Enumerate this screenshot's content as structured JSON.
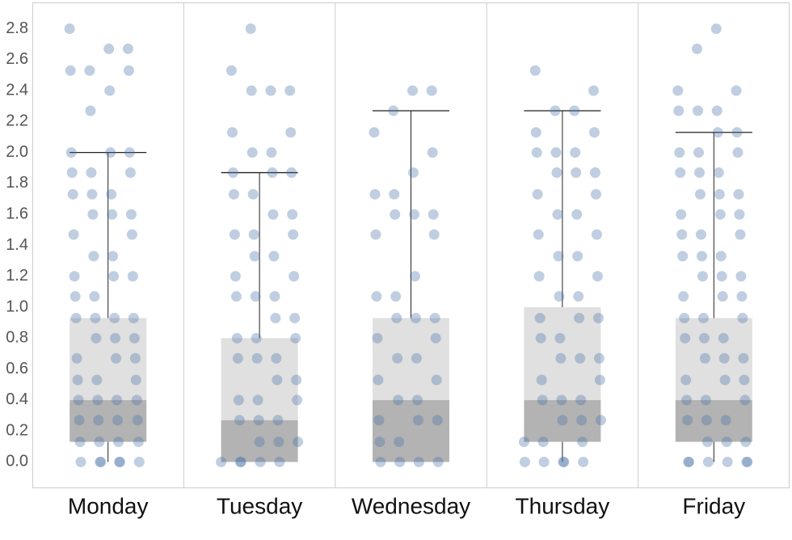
{
  "chart_data": {
    "type": "box",
    "categories": [
      "Monday",
      "Tuesday",
      "Wednesday",
      "Thursday",
      "Friday"
    ],
    "ylim": [
      -0.17,
      2.97
    ],
    "yticks": [
      {
        "value": 0,
        "label": "0.0"
      },
      0.2,
      0.4,
      0.6,
      0.8,
      {
        "value": 1,
        "label": "1.0"
      },
      1.2,
      1.4,
      1.6,
      1.8,
      {
        "value": 2,
        "label": "2.0"
      },
      2.2,
      2.4,
      2.6,
      2.8
    ],
    "box_colors": {
      "lower": "#b3b3b3",
      "upper": "#e0e0e0",
      "points": "#4a72a8",
      "whisker": "#222222"
    },
    "boxes": [
      {
        "low": 0,
        "q1": 0.13,
        "median": 0.4,
        "q3": 0.93,
        "high": 2.0,
        "points": [
          2.8,
          2.67,
          2.67,
          2.53,
          2.53,
          2.53,
          2.4,
          2.27,
          2.0,
          2.0,
          2.0,
          1.87,
          1.87,
          1.87,
          1.73,
          1.73,
          1.73,
          1.6,
          1.6,
          1.6,
          1.47,
          1.47,
          1.33,
          1.33,
          1.2,
          1.2,
          1.2,
          1.07,
          1.07,
          0.93,
          0.93,
          0.93,
          0.93,
          0.8,
          0.8,
          0.8,
          0.67,
          0.67,
          0.67,
          0.53,
          0.53,
          0.53,
          0.4,
          0.4,
          0.4,
          0.4,
          0.27,
          0.27,
          0.27,
          0.27,
          0.13,
          0.13,
          0.13,
          0.13,
          0,
          0,
          0,
          0,
          0,
          0
        ]
      },
      {
        "low": 0,
        "q1": 0,
        "median": 0.27,
        "q3": 0.8,
        "high": 1.87,
        "points": [
          2.8,
          2.53,
          2.4,
          2.4,
          2.4,
          2.13,
          2.13,
          2.0,
          2.0,
          1.87,
          1.87,
          1.87,
          1.73,
          1.73,
          1.6,
          1.6,
          1.47,
          1.47,
          1.47,
          1.33,
          1.33,
          1.2,
          1.2,
          1.07,
          1.07,
          1.07,
          0.93,
          0.93,
          0.8,
          0.8,
          0.8,
          0.67,
          0.67,
          0.67,
          0.53,
          0.53,
          0.4,
          0.4,
          0.4,
          0.27,
          0.27,
          0.27,
          0.13,
          0.13,
          0.13,
          0,
          0,
          0,
          0,
          0
        ]
      },
      {
        "low": 0,
        "q1": 0,
        "median": 0.4,
        "q3": 0.93,
        "high": 2.27,
        "points": [
          2.4,
          2.4,
          2.27,
          2.13,
          2.0,
          1.87,
          1.73,
          1.73,
          1.6,
          1.6,
          1.6,
          1.47,
          1.47,
          1.2,
          1.07,
          1.07,
          0.93,
          0.93,
          0.93,
          0.8,
          0.8,
          0.67,
          0.67,
          0.53,
          0.53,
          0.4,
          0.4,
          0.27,
          0.27,
          0.27,
          0.13,
          0.13,
          0,
          0,
          0,
          0
        ]
      },
      {
        "low": 0,
        "q1": 0.13,
        "median": 0.4,
        "q3": 1.0,
        "high": 2.27,
        "points": [
          2.53,
          2.4,
          2.27,
          2.27,
          2.13,
          2.13,
          2.0,
          2.0,
          2.0,
          1.87,
          1.87,
          1.87,
          1.73,
          1.73,
          1.6,
          1.6,
          1.47,
          1.47,
          1.33,
          1.33,
          1.2,
          1.2,
          1.07,
          1.07,
          0.93,
          0.93,
          0.93,
          0.8,
          0.8,
          0.67,
          0.67,
          0.67,
          0.53,
          0.53,
          0.4,
          0.4,
          0.4,
          0.27,
          0.27,
          0.27,
          0.13,
          0.13,
          0.13,
          0,
          0,
          0,
          0,
          0
        ]
      },
      {
        "low": 0,
        "q1": 0.13,
        "median": 0.4,
        "q3": 0.93,
        "high": 2.13,
        "points": [
          2.8,
          2.67,
          2.4,
          2.4,
          2.27,
          2.27,
          2.27,
          2.13,
          2.13,
          2.0,
          2.0,
          2.0,
          1.87,
          1.87,
          1.87,
          1.73,
          1.73,
          1.73,
          1.6,
          1.6,
          1.6,
          1.47,
          1.47,
          1.47,
          1.33,
          1.33,
          1.33,
          1.2,
          1.2,
          1.2,
          1.07,
          1.07,
          1.07,
          0.93,
          0.93,
          0.93,
          0.8,
          0.8,
          0.8,
          0.67,
          0.67,
          0.67,
          0.53,
          0.53,
          0.53,
          0.4,
          0.4,
          0.4,
          0.27,
          0.27,
          0.27,
          0.13,
          0.13,
          0.13,
          0,
          0,
          0,
          0,
          0,
          0
        ]
      }
    ]
  }
}
